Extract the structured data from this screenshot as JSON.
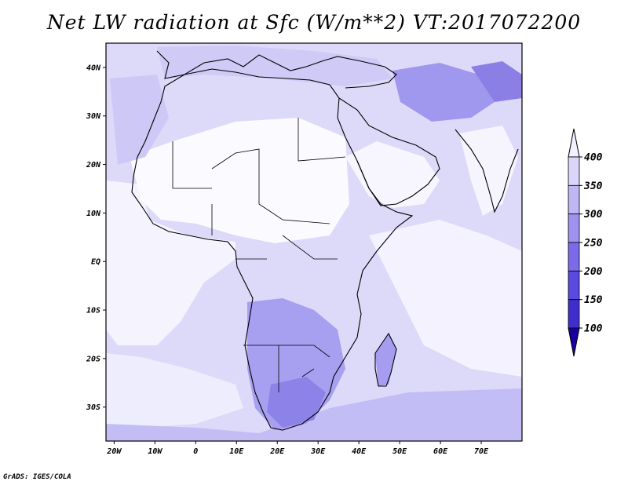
{
  "title": "Net LW radiation at Sfc (W/m**2) VT:2017072200",
  "credit": "GrADS: IGES/COLA",
  "map": {
    "lon_range": [
      -22,
      80
    ],
    "lat_range": [
      -37,
      45
    ],
    "lon_ticks": [
      {
        "value": -20,
        "label": "20W"
      },
      {
        "value": -10,
        "label": "10W"
      },
      {
        "value": 0,
        "label": "0"
      },
      {
        "value": 10,
        "label": "10E"
      },
      {
        "value": 20,
        "label": "20E"
      },
      {
        "value": 30,
        "label": "30E"
      },
      {
        "value": 40,
        "label": "40E"
      },
      {
        "value": 50,
        "label": "50E"
      },
      {
        "value": 60,
        "label": "60E"
      },
      {
        "value": 70,
        "label": "70E"
      }
    ],
    "lat_ticks": [
      {
        "value": 40,
        "label": "40N"
      },
      {
        "value": 30,
        "label": "30N"
      },
      {
        "value": 20,
        "label": "20N"
      },
      {
        "value": 10,
        "label": "10N"
      },
      {
        "value": 0,
        "label": "EQ"
      },
      {
        "value": -10,
        "label": "10S"
      },
      {
        "value": -20,
        "label": "20S"
      },
      {
        "value": -30,
        "label": "30S"
      }
    ]
  },
  "colorbar": {
    "levels": [
      100,
      150,
      200,
      250,
      300,
      350,
      400
    ],
    "labels": [
      "100",
      "150",
      "200",
      "250",
      "300",
      "350",
      "400"
    ],
    "colors": [
      "#1a00a0",
      "#3f2ecb",
      "#5a4ae0",
      "#7a6ce8",
      "#9d93ef",
      "#bdb7f4",
      "#d9d6fa",
      "#f2f1ff"
    ]
  },
  "colors": {
    "clear": "#ffffff",
    "light": "#e6e4fb",
    "mid": "#cbc6f5",
    "dark": "#a69df0",
    "darker": "#8b7fe6",
    "coast": "#000000"
  }
}
